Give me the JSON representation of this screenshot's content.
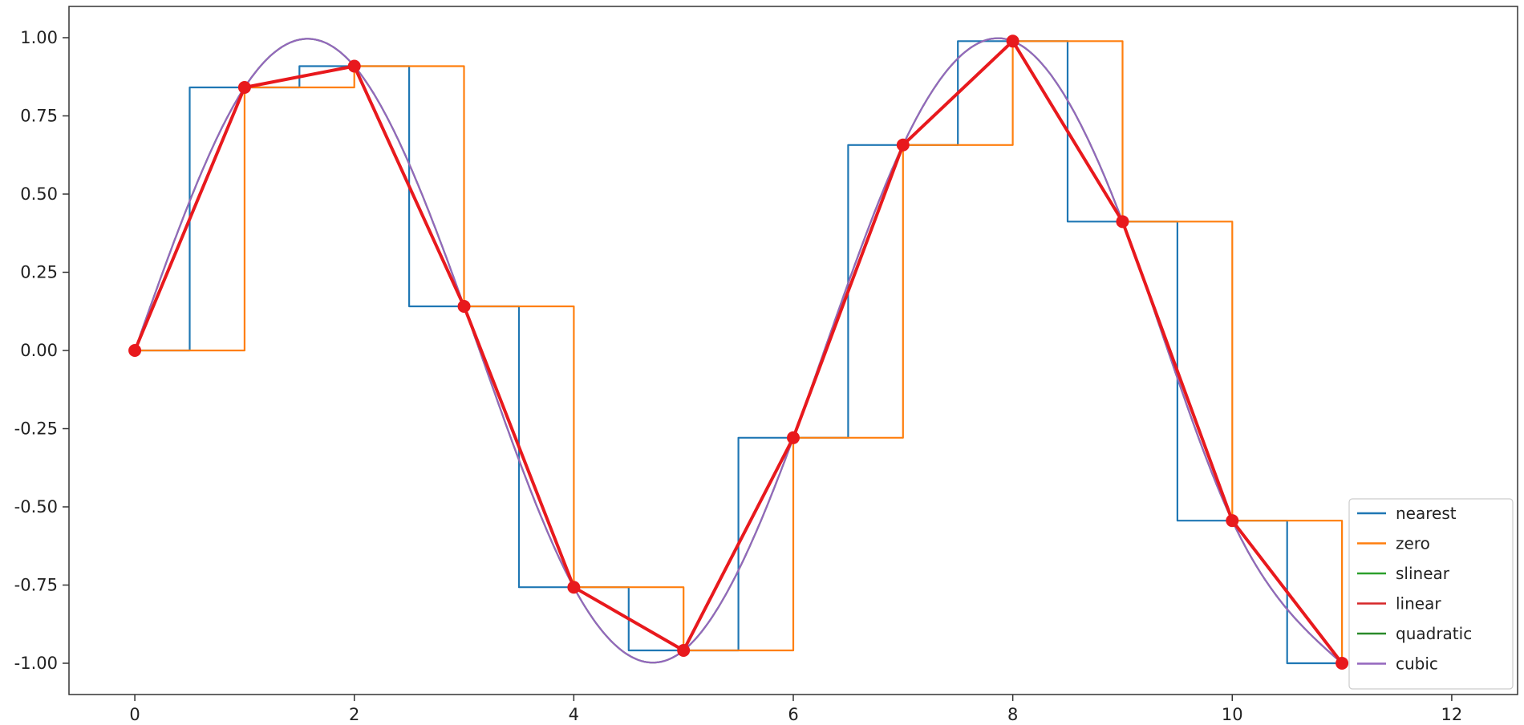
{
  "chart_data": {
    "type": "line",
    "title": "",
    "xlabel": "",
    "ylabel": "",
    "xlim": [
      -0.6,
      12.6
    ],
    "ylim": [
      -1.1,
      1.1
    ],
    "x_ticks": [
      0,
      2,
      4,
      6,
      8,
      10,
      12
    ],
    "x_tick_labels": [
      "0",
      "2",
      "4",
      "6",
      "8",
      "10",
      "12"
    ],
    "y_ticks": [
      1.0,
      0.75,
      0.5,
      0.25,
      0.0,
      -0.25,
      -0.5,
      -0.75,
      -1.0
    ],
    "y_tick_labels": [
      "1.00",
      "0.75",
      "0.50",
      "0.25",
      "0.00",
      "-0.25",
      "-0.50",
      "-0.75",
      "-1.00"
    ],
    "grid": false,
    "legend_position": "bottom-right",
    "samples": {
      "x": [
        0,
        1,
        2,
        3,
        4,
        5,
        6,
        7,
        8,
        9,
        10,
        11
      ],
      "y": [
        0.0,
        0.841,
        0.909,
        0.141,
        -0.757,
        -0.959,
        -0.279,
        0.657,
        0.989,
        0.412,
        -0.544,
        -1.0
      ]
    },
    "series": [
      {
        "name": "nearest",
        "method": "nearest",
        "color": "#1f77b4"
      },
      {
        "name": "zero",
        "method": "zero",
        "color": "#ff7f0e"
      },
      {
        "name": "slinear",
        "method": "linear",
        "color": "#2ca02c"
      },
      {
        "name": "linear",
        "method": "linear",
        "color": "#d62728"
      },
      {
        "name": "quadratic",
        "method": "smooth",
        "color": "#2a8a2a"
      },
      {
        "name": "cubic",
        "method": "smooth",
        "color": "#9467bd"
      }
    ],
    "highlight": {
      "color": "#e8191d",
      "marker": "circle"
    }
  }
}
